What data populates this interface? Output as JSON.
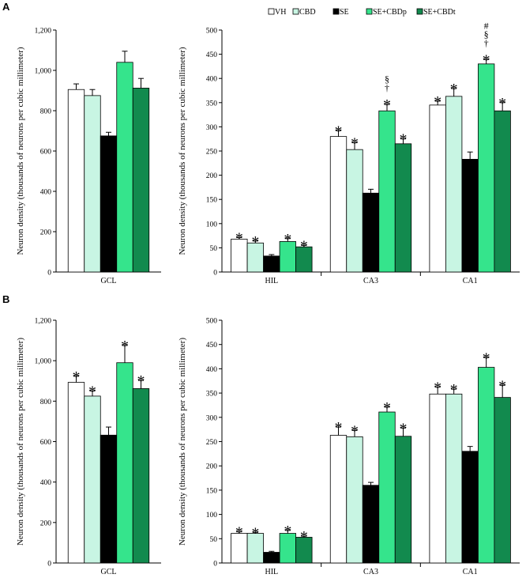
{
  "colors": {
    "VH": "#ffffff",
    "CBD": "#c8f5e3",
    "SE": "#000000",
    "SE+CBDp": "#35e48c",
    "SE+CBDt": "#128a4e",
    "axis": "#000000"
  },
  "legend": [
    "VH",
    "CBD",
    "SE",
    "SE+CBDp",
    "SE+CBDt"
  ],
  "chart_data": [
    {
      "panel": "A",
      "type": "bar",
      "subplot": "left",
      "ylabel": "Neuron density (thousands of neurons per cubic millimeter)",
      "ylim": [
        0,
        1200
      ],
      "yticks": [
        "0",
        "200",
        "400",
        "600",
        "800",
        "1,000",
        "1,200"
      ],
      "categories": [
        "GCL"
      ],
      "series": [
        {
          "name": "VH",
          "values": [
            905
          ],
          "errors": [
            28
          ],
          "markers": [
            ""
          ]
        },
        {
          "name": "CBD",
          "values": [
            875
          ],
          "errors": [
            30
          ],
          "markers": [
            ""
          ]
        },
        {
          "name": "SE",
          "values": [
            675
          ],
          "errors": [
            18
          ],
          "markers": [
            ""
          ]
        },
        {
          "name": "SE+CBDp",
          "values": [
            1040
          ],
          "errors": [
            55
          ],
          "markers": [
            ""
          ]
        },
        {
          "name": "SE+CBDt",
          "values": [
            912
          ],
          "errors": [
            48
          ],
          "markers": [
            ""
          ]
        }
      ]
    },
    {
      "panel": "A",
      "type": "bar",
      "subplot": "right",
      "ylabel": "Neuron density (thousands of neurons per cubic millimeter)",
      "ylim": [
        0,
        500
      ],
      "yticks": [
        "0",
        "50",
        "100",
        "150",
        "200",
        "250",
        "300",
        "350",
        "400",
        "450",
        "500"
      ],
      "categories": [
        "HIL",
        "CA3",
        "CA1"
      ],
      "series": [
        {
          "name": "VH",
          "values": [
            68,
            280,
            345
          ],
          "errors": [
            3,
            12,
            8
          ],
          "markers": [
            "*",
            "*",
            "*"
          ]
        },
        {
          "name": "CBD",
          "values": [
            60,
            253,
            363
          ],
          "errors": [
            4,
            14,
            16
          ],
          "markers": [
            "*",
            "*",
            "*"
          ]
        },
        {
          "name": "SE",
          "values": [
            33,
            163,
            233
          ],
          "errors": [
            3,
            8,
            15
          ],
          "markers": [
            "",
            "",
            ""
          ]
        },
        {
          "name": "SE+CBDp",
          "values": [
            63,
            333,
            430
          ],
          "errors": [
            6,
            13,
            9
          ],
          "markers": [
            "*",
            "*|†|§",
            "*|†|§|#"
          ]
        },
        {
          "name": "SE+CBDt",
          "values": [
            52,
            265,
            333
          ],
          "errors": [
            3,
            10,
            17
          ],
          "markers": [
            "*",
            "*",
            "*"
          ]
        }
      ]
    },
    {
      "panel": "B",
      "type": "bar",
      "subplot": "left",
      "ylabel": "Neuron density (thousands of neurons per cubic millimeter)",
      "ylim": [
        0,
        1200
      ],
      "yticks": [
        "0",
        "200",
        "400",
        "600",
        "800",
        "1,000",
        "1,200"
      ],
      "categories": [
        "GCL"
      ],
      "series": [
        {
          "name": "VH",
          "values": [
            893
          ],
          "errors": [
            30
          ],
          "markers": [
            "*"
          ]
        },
        {
          "name": "CBD",
          "values": [
            825
          ],
          "errors": [
            25
          ],
          "markers": [
            "*"
          ]
        },
        {
          "name": "SE",
          "values": [
            632
          ],
          "errors": [
            40
          ],
          "markers": [
            ""
          ]
        },
        {
          "name": "SE+CBDp",
          "values": [
            990
          ],
          "errors": [
            85
          ],
          "markers": [
            "*"
          ]
        },
        {
          "name": "SE+CBDt",
          "values": [
            862
          ],
          "errors": [
            40
          ],
          "markers": [
            "*"
          ]
        }
      ]
    },
    {
      "panel": "B",
      "type": "bar",
      "subplot": "right",
      "ylabel": "Neuron density (thousands of neurons per cubic millimeter)",
      "ylim": [
        0,
        500
      ],
      "yticks": [
        "0",
        "50",
        "100",
        "150",
        "200",
        "250",
        "300",
        "350",
        "400",
        "450",
        "500"
      ],
      "categories": [
        "HIL",
        "CA3",
        "CA1"
      ],
      "series": [
        {
          "name": "VH",
          "values": [
            61,
            263,
            348
          ],
          "errors": [
            3,
            17,
            14
          ],
          "markers": [
            "*",
            "*",
            "*"
          ]
        },
        {
          "name": "CBD",
          "values": [
            61,
            260,
            348
          ],
          "errors": [
            2,
            13,
            10
          ],
          "markers": [
            "*",
            "*",
            "*"
          ]
        },
        {
          "name": "SE",
          "values": [
            22,
            160,
            230
          ],
          "errors": [
            2,
            6,
            10
          ],
          "markers": [
            "",
            "",
            ""
          ]
        },
        {
          "name": "SE+CBDp",
          "values": [
            61,
            311,
            403
          ],
          "errors": [
            6,
            10,
            20
          ],
          "markers": [
            "*",
            "*",
            "*"
          ]
        },
        {
          "name": "SE+CBDt",
          "values": [
            53,
            261,
            341
          ],
          "errors": [
            2,
            17,
            25
          ],
          "markers": [
            "*",
            "*",
            "*"
          ]
        }
      ]
    }
  ]
}
